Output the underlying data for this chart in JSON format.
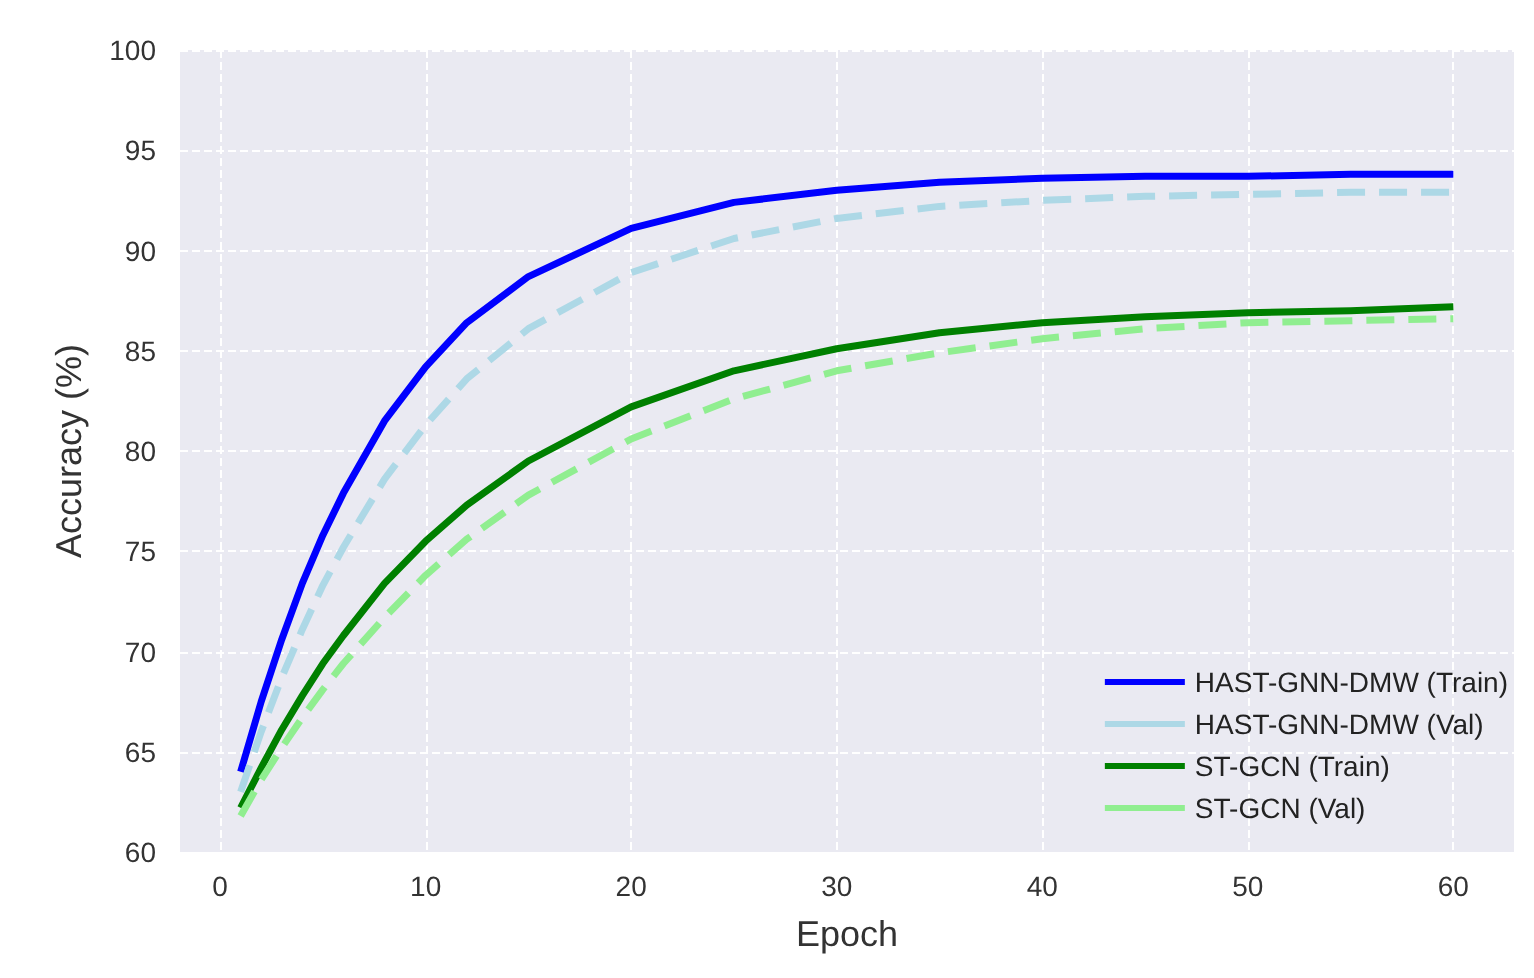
{
  "chart_data": {
    "type": "line",
    "xlabel": "Epoch",
    "ylabel": "Accuracy (%)",
    "x": [
      1,
      2,
      3,
      4,
      5,
      6,
      8,
      10,
      12,
      15,
      20,
      25,
      30,
      35,
      40,
      45,
      50,
      55,
      60
    ],
    "series": [
      {
        "name": "HAST-GNN-DMW (Train)",
        "color": "#0000ff",
        "line_style": "solid",
        "values": [
          64,
          67.5,
          70.6,
          73.4,
          75.8,
          77.9,
          81.5,
          84.2,
          86.4,
          88.7,
          91.1,
          92.4,
          93.0,
          93.4,
          93.6,
          93.7,
          93.7,
          93.8,
          93.8
        ]
      },
      {
        "name": "HAST-GNN-DMW (Val)",
        "color": "#add8e6",
        "line_style": "dashed",
        "values": [
          63,
          66.0,
          68.7,
          71.1,
          73.3,
          75.2,
          78.6,
          81.3,
          83.6,
          86.1,
          88.9,
          90.6,
          91.6,
          92.2,
          92.5,
          92.7,
          92.8,
          92.9,
          92.9
        ]
      },
      {
        "name": "ST-GCN (Train)",
        "color": "#008000",
        "line_style": "solid",
        "values": [
          62.2,
          64.2,
          66.1,
          67.8,
          69.4,
          70.8,
          73.4,
          75.5,
          77.3,
          79.5,
          82.2,
          84.0,
          85.1,
          85.9,
          86.4,
          86.7,
          86.9,
          87.0,
          87.2
        ]
      },
      {
        "name": "ST-GCN (Val)",
        "color": "#90ee90",
        "line_style": "dashed",
        "values": [
          61.8,
          63.6,
          65.2,
          66.7,
          68.1,
          69.4,
          71.7,
          73.8,
          75.6,
          77.8,
          80.6,
          82.6,
          84.0,
          84.9,
          85.6,
          86.1,
          86.4,
          86.5,
          86.6
        ]
      }
    ],
    "xlim": [
      -1.95,
      62.95
    ],
    "xticks": [
      0,
      10,
      20,
      30,
      40,
      50,
      60
    ],
    "ylim": [
      60,
      100
    ],
    "yticks": [
      60,
      65,
      70,
      75,
      80,
      85,
      90,
      95,
      100
    ],
    "grid": true,
    "legend": "bottom right",
    "marker": "none"
  }
}
